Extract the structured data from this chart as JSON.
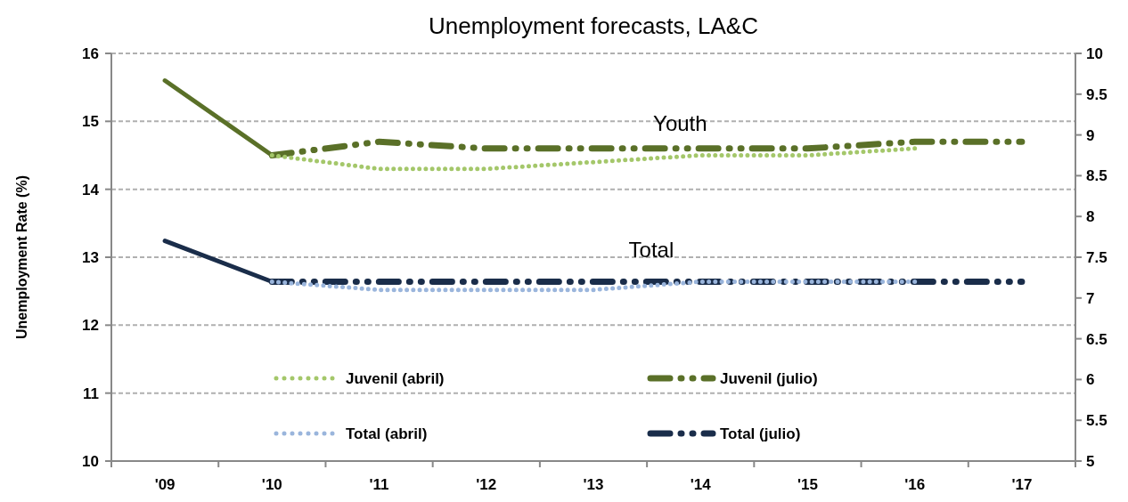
{
  "chart_data": {
    "type": "line",
    "title": "Unemployment forecasts, LA&C",
    "ylabel": "Unemployment Rate (%)",
    "categories": [
      "'09",
      "'10",
      "'11",
      "'12",
      "'13",
      "'14",
      "'15",
      "'16",
      "'17"
    ],
    "ylim": [
      10,
      16
    ],
    "yticks": [
      10,
      11,
      12,
      13,
      14,
      15,
      16
    ],
    "y2lim": [
      5,
      10
    ],
    "y2ticks": [
      5,
      5.5,
      6,
      6.5,
      7,
      7.5,
      8,
      8.5,
      9,
      9.5,
      10
    ],
    "grid": "y",
    "legend": "bottom",
    "annotations": [
      "Youth",
      "Total"
    ],
    "series": [
      {
        "color": "#5a7028",
        "line_style": "solid",
        "values": [
          15.6,
          14.5,
          null,
          null,
          null,
          null,
          null,
          null,
          null
        ]
      },
      {
        "color": "#1a2d4a",
        "line_style": "solid",
        "axis": "y2",
        "values": [
          7.7,
          7.2,
          null,
          null,
          null,
          null,
          null,
          null,
          null
        ]
      },
      {
        "name": "Juvenil (abril)",
        "color": "#a4c76a",
        "line_style": "dotted",
        "values": [
          null,
          14.5,
          14.3,
          14.3,
          14.4,
          14.5,
          14.5,
          14.6,
          null
        ]
      },
      {
        "name": "Juvenil (julio)",
        "color": "#5a7028",
        "line_style": "dashed",
        "values": [
          null,
          14.5,
          14.7,
          14.6,
          14.6,
          14.6,
          14.6,
          14.7,
          14.7
        ]
      },
      {
        "name": "Total (abril)",
        "color": "#9ab5dc",
        "line_style": "dotted",
        "axis": "y2",
        "values": [
          null,
          7.2,
          7.1,
          7.1,
          7.1,
          7.2,
          7.2,
          7.2,
          null
        ]
      },
      {
        "name": "Total (julio)",
        "color": "#1a2d4a",
        "line_style": "dashed",
        "axis": "y2",
        "values": [
          null,
          7.2,
          7.2,
          7.2,
          7.2,
          7.2,
          7.2,
          7.2,
          7.2
        ]
      }
    ]
  }
}
